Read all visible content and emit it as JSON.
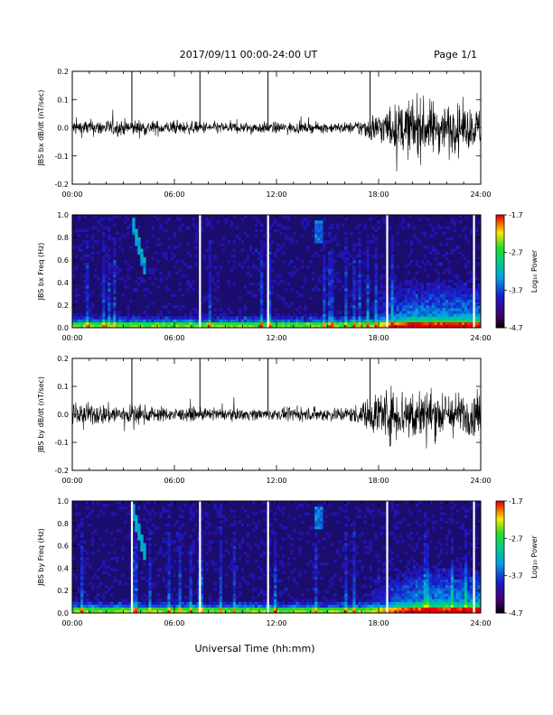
{
  "header": {
    "title": "2017/09/11  00:00-24:00 UT",
    "page": "Page 1/1"
  },
  "footer": {
    "xlabel": "Universal Time (hh:mm)"
  },
  "chart_data": [
    {
      "type": "line",
      "ylabel": "JBS bx dB/dt (nT/sec)",
      "xlim": [
        0,
        24
      ],
      "ylim": [
        -0.2,
        0.2
      ],
      "x_ticks": [
        "00:00",
        "06:00",
        "12:00",
        "18:00",
        "24:00"
      ],
      "y_ticks": [
        "0.2",
        "0.1",
        "0.0",
        "-0.1",
        "-0.2"
      ],
      "y_tick_values": [
        0.2,
        0.1,
        0.0,
        -0.1,
        -0.2
      ],
      "envelope": {
        "hours": [
          0,
          3.5,
          6,
          10,
          12,
          14,
          16.5,
          17.5,
          18,
          20,
          22,
          24
        ],
        "amplitude": [
          0.05,
          0.05,
          0.04,
          0.035,
          0.035,
          0.03,
          0.035,
          0.08,
          0.1,
          0.18,
          0.15,
          0.12
        ]
      },
      "markers_hours": [
        3.5,
        7.5,
        11.5,
        17.5
      ]
    },
    {
      "type": "heatmap",
      "ylabel": "JBS bx Freq (Hz)",
      "xlim": [
        0,
        24
      ],
      "ylim": [
        0,
        1.0
      ],
      "x_ticks": [
        "00:00",
        "06:00",
        "12:00",
        "18:00",
        "24:00"
      ],
      "y_ticks": [
        "1.0",
        "0.8",
        "0.6",
        "0.4",
        "0.2",
        "0.0"
      ],
      "y_tick_values": [
        1.0,
        0.8,
        0.6,
        0.4,
        0.2,
        0.0
      ],
      "colorbar": {
        "label": "Log₁₀ Power",
        "ticks": [
          "-1.7",
          "-2.7",
          "-3.7",
          "-4.7"
        ],
        "range": [
          -4.7,
          -1.7
        ]
      },
      "gaps_hours": [
        7.5,
        11.5,
        18.5,
        23.6
      ]
    },
    {
      "type": "line",
      "ylabel": "JBS by dB/dt (nT/sec)",
      "xlim": [
        0,
        24
      ],
      "ylim": [
        -0.2,
        0.2
      ],
      "x_ticks": [
        "00:00",
        "06:00",
        "12:00",
        "18:00",
        "24:00"
      ],
      "y_ticks": [
        "0.2",
        "0.1",
        "0.0",
        "-0.1",
        "-0.2"
      ],
      "y_tick_values": [
        0.2,
        0.1,
        0.0,
        -0.1,
        -0.2
      ],
      "envelope": {
        "hours": [
          0,
          3.5,
          6,
          10,
          12,
          14,
          16.5,
          17.5,
          18,
          20,
          22,
          24
        ],
        "amplitude": [
          0.07,
          0.06,
          0.04,
          0.035,
          0.035,
          0.04,
          0.05,
          0.1,
          0.16,
          0.17,
          0.14,
          0.12
        ]
      },
      "markers_hours": [
        3.5,
        7.5,
        11.5,
        17.5
      ]
    },
    {
      "type": "heatmap",
      "ylabel": "JBS by Freq (Hz)",
      "xlim": [
        0,
        24
      ],
      "ylim": [
        0,
        1.0
      ],
      "x_ticks": [
        "00:00",
        "06:00",
        "12:00",
        "18:00",
        "24:00"
      ],
      "y_ticks": [
        "1.0",
        "0.8",
        "0.6",
        "0.4",
        "0.2",
        "0.0"
      ],
      "y_tick_values": [
        1.0,
        0.8,
        0.6,
        0.4,
        0.2,
        0.0
      ],
      "colorbar": {
        "label": "Log₁₀ Power",
        "ticks": [
          "-1.7",
          "-2.7",
          "-3.7",
          "-4.7"
        ],
        "range": [
          -4.7,
          -1.7
        ]
      },
      "gaps_hours": [
        3.5,
        7.5,
        11.5,
        18.5,
        23.6
      ]
    }
  ]
}
